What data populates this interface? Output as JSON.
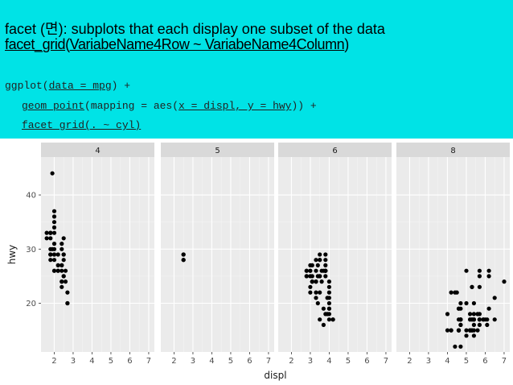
{
  "header": {
    "line1": {
      "pre": "facet (",
      "hangul": "면",
      "post": "): subplots that each display one subset of the data"
    },
    "line2": {
      "func": "facet_grid",
      "open": "(",
      "args": "VariabeName4Row ~ VariabeName4Column",
      "close": ")"
    },
    "code1": {
      "pre": "ggplot(",
      "arg": "data = mpg",
      "post": ") +"
    },
    "code2": {
      "func": "geom_point",
      "mid": "(mapping = aes(",
      "arg": "x = displ, y = hwy",
      "post": ")) +"
    },
    "code3": {
      "text": "facet_grid(. ~ cyl)"
    },
    "accent_color": "#00e3e6"
  },
  "chart_data": {
    "type": "scatter",
    "facet_by": "cyl",
    "xlabel": "displ",
    "ylabel": "hwy",
    "xlim": [
      1.3,
      7.3
    ],
    "ylim": [
      11,
      47
    ],
    "xticks": [
      2,
      3,
      4,
      5,
      6,
      7
    ],
    "yticks": [
      20,
      30,
      40
    ],
    "grid": true,
    "panels": [
      {
        "label": "4",
        "points": [
          [
            1.8,
            29
          ],
          [
            1.8,
            29
          ],
          [
            2.0,
            31
          ],
          [
            2.0,
            30
          ],
          [
            2.0,
            26
          ],
          [
            2.4,
            26
          ],
          [
            2.4,
            27
          ],
          [
            2.4,
            27
          ],
          [
            2.5,
            25
          ],
          [
            2.5,
            25
          ],
          [
            2.2,
            26
          ],
          [
            2.2,
            27
          ],
          [
            2.4,
            24
          ],
          [
            2.4,
            24
          ],
          [
            2.0,
            35
          ],
          [
            2.0,
            37
          ],
          [
            2.0,
            29
          ],
          [
            1.9,
            44
          ],
          [
            2.0,
            26
          ],
          [
            2.5,
            28
          ],
          [
            2.5,
            29
          ],
          [
            2.7,
            20
          ],
          [
            2.7,
            22
          ],
          [
            2.4,
            30
          ],
          [
            2.5,
            32
          ],
          [
            2.5,
            29
          ],
          [
            1.8,
            33
          ],
          [
            1.8,
            33
          ],
          [
            2.0,
            36
          ],
          [
            2.0,
            29
          ],
          [
            1.6,
            33
          ],
          [
            1.6,
            32
          ],
          [
            1.8,
            32
          ],
          [
            2.0,
            33
          ],
          [
            1.8,
            33
          ],
          [
            1.9,
            30
          ],
          [
            1.8,
            29
          ],
          [
            2.2,
            29
          ],
          [
            2.2,
            26
          ],
          [
            2.6,
            24
          ],
          [
            2.6,
            26
          ],
          [
            2.4,
            31
          ],
          [
            2.0,
            28
          ],
          [
            1.8,
            30
          ],
          [
            1.8,
            28
          ],
          [
            2.0,
            34
          ],
          [
            2.4,
            23
          ],
          [
            2.7,
            20
          ]
        ]
      },
      {
        "label": "5",
        "points": [
          [
            2.5,
            29
          ],
          [
            2.5,
            29
          ],
          [
            2.5,
            28
          ],
          [
            2.5,
            28
          ]
        ]
      },
      {
        "label": "6",
        "points": [
          [
            2.8,
            26
          ],
          [
            2.8,
            26
          ],
          [
            3.1,
            27
          ],
          [
            2.8,
            25
          ],
          [
            3.1,
            25
          ],
          [
            3.0,
            25
          ],
          [
            3.0,
            26
          ],
          [
            3.1,
            24
          ],
          [
            3.3,
            24
          ],
          [
            3.3,
            24
          ],
          [
            3.5,
            25
          ],
          [
            3.8,
            26
          ],
          [
            3.8,
            27
          ],
          [
            3.8,
            29
          ],
          [
            3.3,
            28
          ],
          [
            3.4,
            27
          ],
          [
            3.5,
            28
          ],
          [
            3.7,
            26
          ],
          [
            3.0,
            26
          ],
          [
            3.8,
            25
          ],
          [
            3.6,
            26
          ],
          [
            3.8,
            26
          ],
          [
            3.0,
            22
          ],
          [
            3.3,
            22
          ],
          [
            3.4,
            20
          ],
          [
            3.5,
            22
          ],
          [
            4.0,
            17
          ],
          [
            4.0,
            18
          ],
          [
            4.0,
            19
          ],
          [
            4.2,
            17
          ],
          [
            4.0,
            20
          ],
          [
            3.9,
            21
          ],
          [
            3.7,
            19
          ],
          [
            4.0,
            22
          ],
          [
            4.0,
            23
          ],
          [
            3.3,
            26
          ],
          [
            3.8,
            26
          ],
          [
            3.4,
            25
          ],
          [
            3.1,
            24
          ],
          [
            4.0,
            24
          ],
          [
            3.5,
            29
          ],
          [
            3.8,
            26
          ],
          [
            3.8,
            28
          ],
          [
            3.6,
            24
          ],
          [
            3.0,
            23
          ],
          [
            3.3,
            21
          ],
          [
            3.5,
            17
          ],
          [
            3.9,
            18
          ],
          [
            4.2,
            17
          ],
          [
            4.0,
            19
          ],
          [
            3.7,
            16
          ],
          [
            3.8,
            18
          ],
          [
            3.5,
            25
          ],
          [
            3.0,
            27
          ],
          [
            4.0,
            21
          ],
          [
            2.8,
            25
          ],
          [
            3.5,
            28
          ],
          [
            3.1,
            24
          ]
        ]
      },
      {
        "label": "8",
        "points": [
          [
            5.7,
            26
          ],
          [
            5.7,
            25
          ],
          [
            6.2,
            26
          ],
          [
            6.2,
            25
          ],
          [
            7.0,
            24
          ],
          [
            5.3,
            23
          ],
          [
            5.3,
            23
          ],
          [
            5.7,
            23
          ],
          [
            6.5,
            21
          ],
          [
            5.4,
            20
          ],
          [
            4.7,
            20
          ],
          [
            4.7,
            19
          ],
          [
            5.2,
            18
          ],
          [
            5.7,
            18
          ],
          [
            5.9,
            17
          ],
          [
            4.7,
            17
          ],
          [
            4.7,
            17
          ],
          [
            5.2,
            17
          ],
          [
            5.2,
            15
          ],
          [
            5.7,
            17
          ],
          [
            5.9,
            17
          ],
          [
            4.6,
            17
          ],
          [
            5.4,
            17
          ],
          [
            5.4,
            17
          ],
          [
            4.7,
            16
          ],
          [
            4.7,
            17
          ],
          [
            5.2,
            15
          ],
          [
            5.2,
            15
          ],
          [
            5.7,
            17
          ],
          [
            6.1,
            16
          ],
          [
            6.5,
            17
          ],
          [
            4.6,
            15
          ],
          [
            5.3,
            15
          ],
          [
            5.3,
            15
          ],
          [
            5.6,
            15
          ],
          [
            4.2,
            15
          ],
          [
            4.2,
            15
          ],
          [
            4.6,
            15
          ],
          [
            5.4,
            15
          ],
          [
            5.4,
            14
          ],
          [
            6.0,
            17
          ],
          [
            5.3,
            17
          ],
          [
            5.3,
            17
          ],
          [
            5.7,
            17
          ],
          [
            6.1,
            17
          ],
          [
            5.4,
            17
          ],
          [
            4.0,
            15
          ],
          [
            4.6,
            15
          ],
          [
            5.0,
            15
          ],
          [
            4.4,
            12
          ],
          [
            4.7,
            12
          ],
          [
            5.4,
            16
          ],
          [
            4.0,
            18
          ],
          [
            6.2,
            19
          ],
          [
            4.7,
            16
          ],
          [
            4.4,
            22
          ],
          [
            4.2,
            22
          ],
          [
            4.5,
            22
          ],
          [
            5.0,
            26
          ],
          [
            5.6,
            18
          ],
          [
            4.6,
            15
          ],
          [
            5.4,
            17
          ],
          [
            5.0,
            20
          ],
          [
            4.7,
            17
          ],
          [
            5.2,
            17
          ],
          [
            5.7,
            16
          ],
          [
            5.0,
            14
          ],
          [
            4.6,
            19
          ],
          [
            4.6,
            19
          ],
          [
            5.4,
            18
          ]
        ]
      }
    ]
  }
}
